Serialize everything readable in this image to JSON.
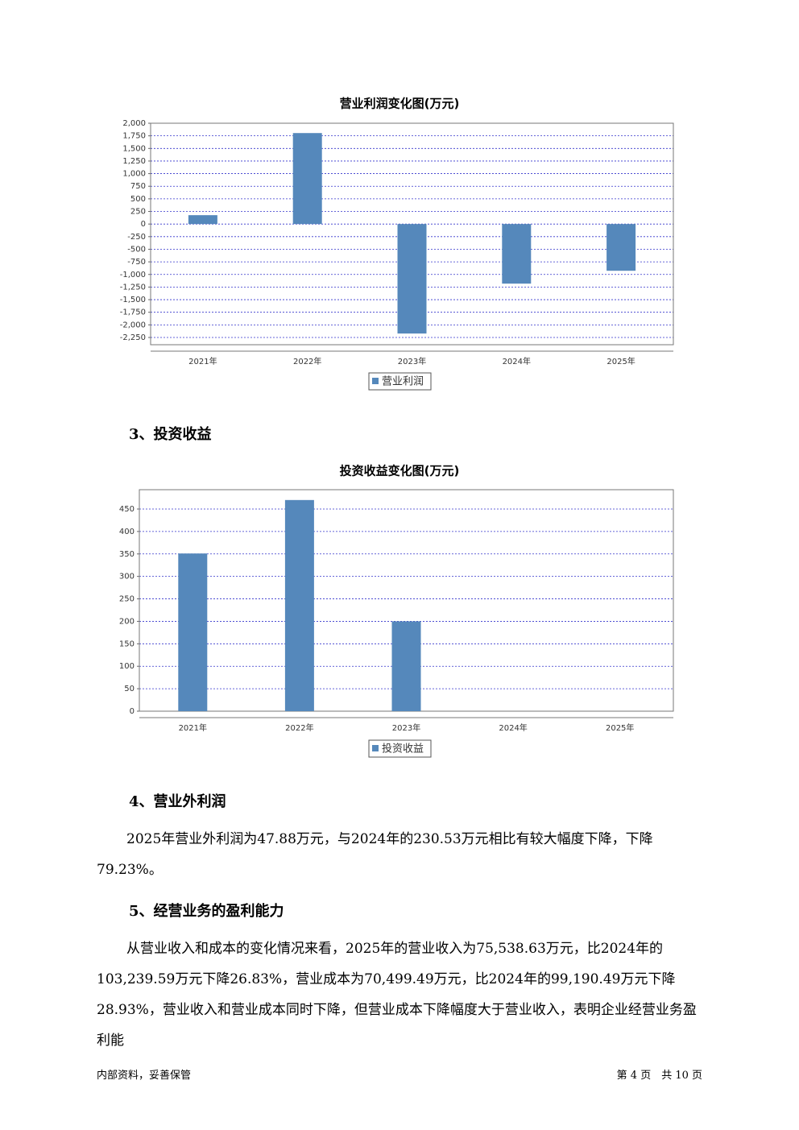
{
  "chart_data": [
    {
      "type": "bar",
      "title": "营业利润变化图(万元)",
      "categories": [
        "2021年",
        "2022年",
        "2023年",
        "2024年",
        "2025年"
      ],
      "series": [
        {
          "name": "营业利润",
          "color": "#5588bb",
          "values": [
            176,
            1805,
            -2172,
            -1182,
            -927
          ]
        }
      ],
      "ylim": [
        -2394,
        2000
      ],
      "yticks": [
        {
          "value": 2000,
          "label": "2,000"
        },
        {
          "value": 1750,
          "label": "1,750"
        },
        {
          "value": 1500,
          "label": "1,500"
        },
        {
          "value": 1250,
          "label": "1,250"
        },
        {
          "value": 1000,
          "label": "1,000"
        },
        750,
        500,
        250,
        0,
        -250,
        -500,
        -750,
        {
          "value": -1000,
          "label": "-1,000"
        },
        {
          "value": -1250,
          "label": "-1,250"
        },
        {
          "value": -1500,
          "label": "-1,500"
        },
        {
          "value": -1750,
          "label": "-1,750"
        },
        {
          "value": -2000,
          "label": "-2,000"
        },
        {
          "value": -2250,
          "label": "-2,250"
        }
      ],
      "grid": true,
      "legend": "bottom"
    },
    {
      "type": "bar",
      "title": "投资收益变化图(万元)",
      "categories": [
        "2021年",
        "2022年",
        "2023年",
        "2024年",
        "2025年"
      ],
      "series": [
        {
          "name": "投资收益",
          "color": "#5588bb",
          "values": [
            351,
            470,
            200,
            0,
            0
          ]
        }
      ],
      "ylim": [
        0,
        493
      ],
      "yticks": [
        0,
        50,
        100,
        150,
        200,
        250,
        300,
        350,
        400,
        450
      ],
      "grid": true,
      "legend": "bottom"
    }
  ],
  "sections": [
    {
      "heading": "3、投资收益"
    },
    {
      "heading": "4、营业外利润",
      "paragraph": "2025年营业外利润为47.88万元，与2024年的230.53万元相比有较大幅度下降，下降79.23%。"
    },
    {
      "heading": "5、经营业务的盈利能力",
      "paragraph": "从营业收入和成本的变化情况来看，2025年的营业收入为75,538.63万元，比2024年的103,239.59万元下降26.83%，营业成本为70,499.49万元，比2024年的99,190.49万元下降28.93%，营业收入和营业成本同时下降，但营业成本下降幅度大于营业收入，表明企业经营业务盈利能"
    }
  ],
  "footer": {
    "left": "内部资料，妥善保管",
    "right": "第 4 页　共 10 页"
  }
}
